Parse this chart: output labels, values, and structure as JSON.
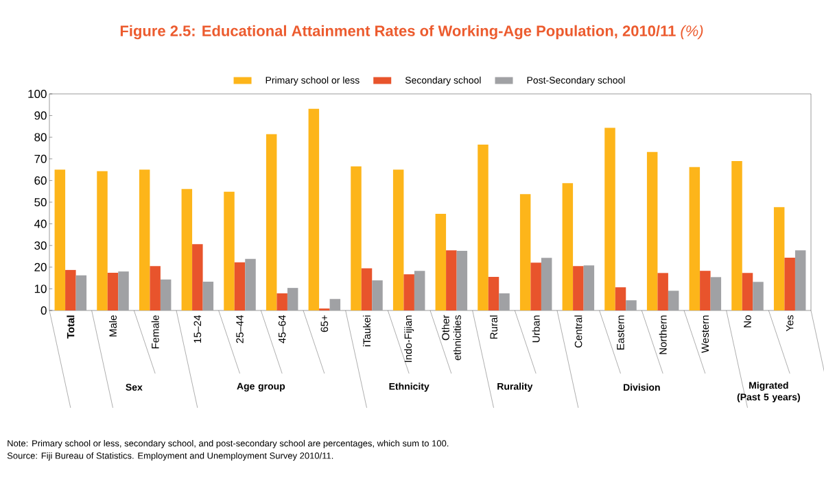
{
  "chart_data": {
    "type": "bar",
    "title": "**Figure 2.5: Educational Attainment Rates of Working-Age Population, 2010/11** *(%)*",
    "categories": [
      "Total",
      "Male",
      "Female",
      "15–24",
      "25–44",
      "45–64",
      "65+",
      "iTaukei",
      "Indo-Fijian",
      "Other ethnicities",
      "Rural",
      "Urban",
      "Central",
      "Eastern",
      "Northern",
      "Western",
      "No",
      "Yes"
    ],
    "series": [
      {
        "name": "Primary school or less",
        "color": "#fdb51a",
        "values": [
          65.0,
          64.3,
          65.0,
          56.1,
          54.8,
          81.4,
          93.1,
          66.5,
          65.0,
          44.6,
          76.6,
          53.7,
          58.8,
          84.3,
          73.2,
          66.2,
          69.0,
          47.7
        ]
      },
      {
        "name": "Secondary school",
        "color": "#e8542c",
        "values": [
          18.7,
          17.4,
          20.5,
          30.6,
          22.2,
          7.9,
          0.9,
          19.5,
          16.7,
          27.8,
          15.5,
          22.1,
          20.5,
          10.7,
          17.3,
          18.3,
          17.3,
          24.4
        ]
      },
      {
        "name": "Post-Secondary school",
        "color": "#a0a1a4",
        "values": [
          16.2,
          18.0,
          14.3,
          13.3,
          23.8,
          10.4,
          5.3,
          13.9,
          18.3,
          27.5,
          7.9,
          24.3,
          20.8,
          4.7,
          9.1,
          15.4,
          13.2,
          27.8
        ]
      }
    ],
    "ylim": [
      0,
      100
    ],
    "yticks": [
      0,
      10,
      20,
      30,
      40,
      50,
      60,
      70,
      80,
      90,
      100
    ],
    "legend": "top",
    "annotations": [
      "Sex",
      "Age group",
      "Ethnicity",
      "Rurality",
      "Division",
      "Migrated (Past 5 years)",
      "Note: Primary school or less, secondary school, and post-secondary school are percentages, which sum to 100.",
      "Source: Fiji Bureau of Statistics. Employment and Unemployment Survey 2010/11."
    ]
  }
}
